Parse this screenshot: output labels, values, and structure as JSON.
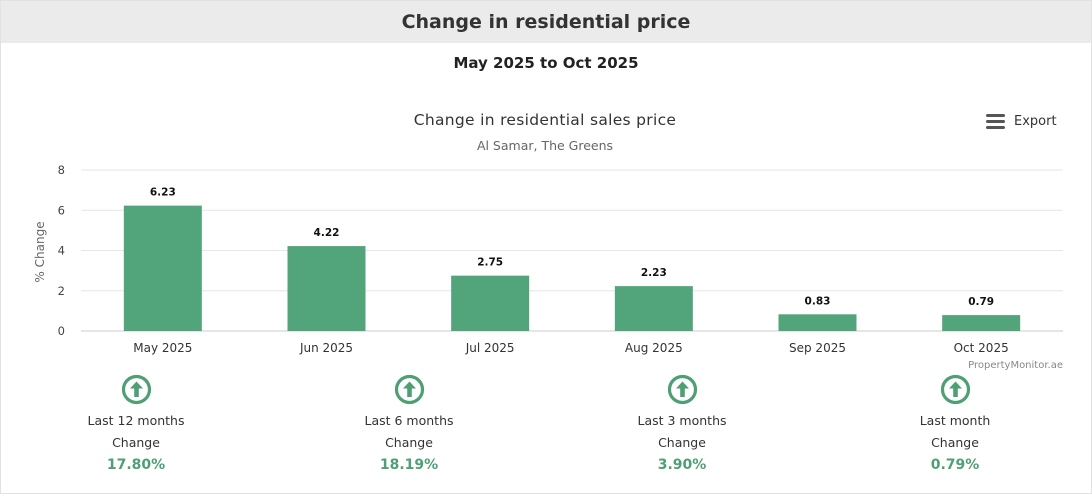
{
  "header": {
    "title": "Change in residential price"
  },
  "period": "May 2025 to Oct 2025",
  "export_label": "Export",
  "credit": "PropertyMonitor.ae",
  "colors": {
    "bar": "#52a57b",
    "accent": "#4e9f74",
    "header_bg": "#ebebeb"
  },
  "chart_data": {
    "type": "bar",
    "title": "Change in residential sales price",
    "subtitle": "Al Samar, The Greens",
    "xlabel": "",
    "ylabel": "% Change",
    "categories": [
      "May 2025",
      "Jun 2025",
      "Jul 2025",
      "Aug 2025",
      "Sep 2025",
      "Oct 2025"
    ],
    "values": [
      6.23,
      4.22,
      2.75,
      2.23,
      0.83,
      0.79
    ],
    "ylim": [
      0,
      8
    ],
    "yticks": [
      0,
      2,
      4,
      6,
      8
    ],
    "grid": true,
    "data_labels": true
  },
  "summary": [
    {
      "icon": "up-arrow-circle-icon",
      "label": "Last 12 months",
      "change_label": "Change",
      "value": "17.80%"
    },
    {
      "icon": "up-arrow-circle-icon",
      "label": "Last 6 months",
      "change_label": "Change",
      "value": "18.19%"
    },
    {
      "icon": "up-arrow-circle-icon",
      "label": "Last 3 months",
      "change_label": "Change",
      "value": "3.90%"
    },
    {
      "icon": "up-arrow-circle-icon",
      "label": "Last month",
      "change_label": "Change",
      "value": "0.79%"
    }
  ]
}
